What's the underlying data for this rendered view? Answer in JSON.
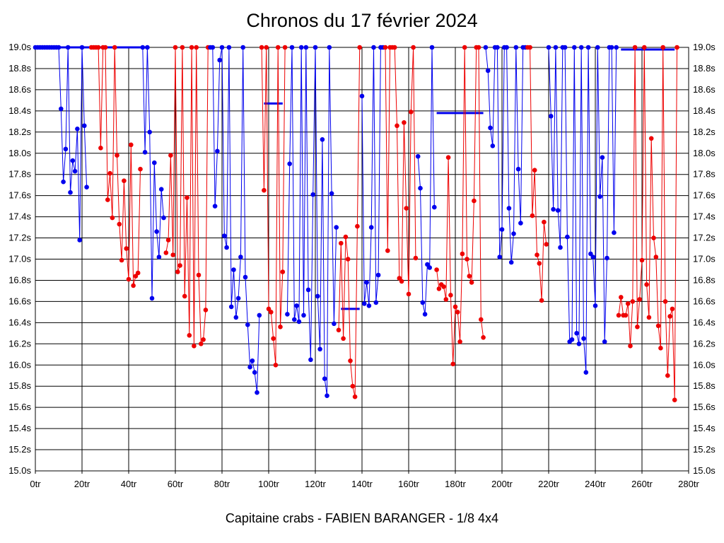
{
  "chart_data": {
    "type": "line",
    "title": "Chronos du 17 février 2024",
    "caption": "Capitaine crabs - FABIEN BARANGER - 1/8 4x4",
    "xlim": [
      0,
      280
    ],
    "ylim": [
      15.0,
      19.0
    ],
    "x_ticks": [
      0,
      20,
      40,
      60,
      80,
      100,
      120,
      140,
      160,
      180,
      200,
      220,
      240,
      260,
      280
    ],
    "x_tick_labels": [
      "0tr",
      "20tr",
      "40tr",
      "60tr",
      "80tr",
      "100tr",
      "120tr",
      "140tr",
      "160tr",
      "180tr",
      "200tr",
      "220tr",
      "240tr",
      "260tr",
      "280tr"
    ],
    "y_ticks": [
      15.0,
      15.2,
      15.4,
      15.6,
      15.8,
      16.0,
      16.2,
      16.4,
      16.6,
      16.8,
      17.0,
      17.2,
      17.4,
      17.6,
      17.8,
      18.0,
      18.2,
      18.4,
      18.6,
      18.8,
      19.0
    ],
    "y_tick_labels": [
      "15.0s",
      "15.2s",
      "15.4s",
      "15.6s",
      "15.8s",
      "16.0s",
      "16.2s",
      "16.4s",
      "16.6s",
      "16.8s",
      "17.0s",
      "17.2s",
      "17.4s",
      "17.6s",
      "17.8s",
      "18.0s",
      "18.2s",
      "18.4s",
      "18.6s",
      "18.8s",
      "19.0s"
    ],
    "grid": true,
    "colors": {
      "blue": "#0000ee",
      "red": "#ee0000",
      "grid": "#000000"
    },
    "segments": [
      {
        "color": "blue",
        "x": [
          0,
          1,
          2,
          3,
          4,
          5,
          6,
          7,
          8,
          9,
          10,
          11,
          12,
          13,
          14,
          15,
          16,
          17,
          18,
          19,
          20,
          21,
          22
        ],
        "y": [
          19.0,
          19.0,
          19.0,
          19.0,
          19.0,
          19.0,
          19.0,
          19.0,
          19.0,
          19.0,
          19.0,
          18.42,
          17.73,
          18.04,
          19.0,
          17.63,
          17.93,
          17.83,
          18.23,
          17.18,
          19.0,
          18.26,
          17.68
        ]
      },
      {
        "color": "red",
        "x": [
          24,
          25,
          26,
          27,
          28,
          29,
          30,
          31,
          32,
          33,
          34,
          35,
          36,
          37,
          38,
          39,
          40,
          41,
          42,
          43,
          44,
          45
        ],
        "y": [
          19.0,
          19.0,
          19.0,
          19.0,
          18.05,
          19.0,
          19.0,
          17.56,
          17.81,
          17.39,
          19.0,
          17.98,
          17.33,
          16.99,
          17.74,
          17.1,
          16.81,
          18.08,
          16.75,
          16.84,
          16.87,
          17.85
        ]
      },
      {
        "color": "blue",
        "x": [
          46,
          47,
          48,
          49,
          50,
          51,
          52,
          53,
          54,
          55
        ],
        "y": [
          19.0,
          18.01,
          19.0,
          18.2,
          16.63,
          17.91,
          17.26,
          17.02,
          17.66,
          17.39
        ]
      },
      {
        "color": "red",
        "x": [
          56,
          57,
          58,
          59,
          60,
          61,
          62,
          63,
          64,
          65,
          66,
          67,
          68,
          69,
          70,
          71,
          72,
          73,
          74
        ],
        "y": [
          17.06,
          17.18,
          17.98,
          17.04,
          19.0,
          16.88,
          16.94,
          19.0,
          16.65,
          17.58,
          16.28,
          19.0,
          16.18,
          19.0,
          16.85,
          16.2,
          16.24,
          16.52,
          19.0
        ]
      },
      {
        "color": "blue",
        "x": [
          75,
          76,
          77,
          78,
          79,
          80,
          81,
          82,
          83,
          84,
          85,
          86,
          87,
          88,
          89,
          90,
          91,
          92,
          93,
          94,
          95,
          96
        ],
        "y": [
          19.0,
          19.0,
          17.5,
          18.02,
          18.88,
          19.0,
          17.22,
          17.11,
          19.0,
          16.55,
          16.9,
          16.45,
          16.63,
          17.02,
          19.0,
          16.83,
          16.38,
          15.98,
          16.04,
          15.93,
          15.74,
          16.47
        ]
      },
      {
        "color": "red",
        "x": [
          97,
          98,
          99,
          100,
          101,
          102,
          103,
          104,
          105,
          106,
          107
        ],
        "y": [
          19.0,
          17.65,
          19.0,
          16.53,
          16.5,
          16.25,
          16.0,
          19.0,
          16.36,
          16.88,
          19.0
        ]
      },
      {
        "color": "blue",
        "x": [
          108,
          109,
          110,
          111,
          112,
          113,
          114,
          115,
          116,
          117,
          118,
          119,
          120,
          121,
          122,
          123,
          124,
          125,
          126,
          127,
          128,
          129
        ],
        "y": [
          16.48,
          17.9,
          19.0,
          16.43,
          16.56,
          16.41,
          19.0,
          16.47,
          19.0,
          16.71,
          16.05,
          17.61,
          19.0,
          16.65,
          16.15,
          18.13,
          15.87,
          15.71,
          19.0,
          17.62,
          16.39,
          17.3
        ]
      },
      {
        "color": "red",
        "x": [
          130,
          131,
          132,
          133,
          134,
          135,
          136,
          137,
          138,
          139
        ],
        "y": [
          16.33,
          17.15,
          16.25,
          17.21,
          17.0,
          16.04,
          15.8,
          15.7,
          17.31,
          19.0
        ]
      },
      {
        "color": "blue",
        "x": [
          140,
          141,
          142,
          143,
          144,
          145,
          146,
          147,
          148,
          149
        ],
        "y": [
          18.54,
          16.58,
          16.78,
          16.56,
          17.3,
          19.0,
          16.59,
          16.85,
          19.0,
          19.0
        ]
      },
      {
        "color": "red",
        "x": [
          150,
          151,
          152,
          153,
          154,
          155,
          156,
          157,
          158,
          159,
          160,
          161,
          162,
          163
        ],
        "y": [
          19.0,
          17.08,
          19.0,
          19.0,
          19.0,
          18.26,
          16.82,
          16.79,
          18.29,
          17.48,
          16.67,
          18.39,
          19.0,
          17.01
        ]
      },
      {
        "color": "blue",
        "x": [
          164,
          165,
          166,
          167,
          168,
          169,
          170,
          171
        ],
        "y": [
          17.97,
          17.67,
          16.59,
          16.48,
          16.95,
          16.92,
          19.0,
          17.49
        ]
      },
      {
        "color": "red",
        "x": [
          172,
          173,
          174,
          175,
          176,
          177,
          178,
          179,
          180,
          181,
          182,
          183,
          184,
          185,
          186,
          187,
          188,
          189,
          190,
          191,
          192
        ],
        "y": [
          16.9,
          16.72,
          16.76,
          16.74,
          16.62,
          17.96,
          16.66,
          16.01,
          16.55,
          16.5,
          16.22,
          17.05,
          19.0,
          17.0,
          16.84,
          16.78,
          17.55,
          19.0,
          19.0,
          16.43,
          16.26
        ]
      },
      {
        "color": "blue",
        "x": [
          193,
          194,
          195,
          196,
          197,
          198,
          199,
          200,
          201,
          202,
          203,
          204,
          205,
          206,
          207,
          208,
          209,
          210
        ],
        "y": [
          19.0,
          18.78,
          18.24,
          18.07,
          19.0,
          19.0,
          17.02,
          17.28,
          19.0,
          19.0,
          17.48,
          16.97,
          17.24,
          19.0,
          17.85,
          17.34,
          19.0,
          19.0
        ]
      },
      {
        "color": "red",
        "x": [
          211,
          212,
          213,
          214,
          215,
          216,
          217,
          218,
          219
        ],
        "y": [
          19.0,
          19.0,
          17.41,
          17.84,
          17.04,
          16.96,
          16.61,
          17.35,
          17.14
        ]
      },
      {
        "color": "blue",
        "x": [
          220,
          221,
          222,
          223,
          224,
          225,
          226,
          227,
          228,
          229,
          230,
          231,
          232,
          233,
          234,
          235,
          236,
          237,
          238,
          239,
          240,
          241,
          242,
          243,
          244,
          245,
          246,
          247,
          248,
          249
        ],
        "y": [
          19.0,
          18.35,
          17.47,
          19.0,
          17.46,
          17.11,
          19.0,
          19.0,
          17.21,
          16.22,
          16.24,
          19.0,
          16.3,
          16.2,
          19.0,
          16.25,
          15.93,
          19.0,
          17.05,
          17.02,
          16.56,
          19.0,
          17.59,
          17.96,
          16.22,
          17.01,
          19.0,
          19.0,
          17.25,
          19.0
        ]
      },
      {
        "color": "red",
        "x": [
          250,
          251,
          252,
          253,
          254,
          255,
          256,
          257,
          258,
          259,
          260,
          261,
          262,
          263,
          264,
          265,
          266,
          267,
          268,
          269,
          270,
          271,
          272,
          273,
          274,
          275
        ],
        "y": [
          16.47,
          16.64,
          16.47,
          16.47,
          16.58,
          16.18,
          16.6,
          19.0,
          16.36,
          16.62,
          16.99,
          19.0,
          16.76,
          16.45,
          18.14,
          17.2,
          17.02,
          16.37,
          16.16,
          19.0,
          16.6,
          15.9,
          16.46,
          16.53,
          15.67,
          19.0
        ]
      }
    ],
    "pit_lines": [
      {
        "color": "blue",
        "x": [
          3,
          48
        ],
        "y": [
          19.0,
          19.0
        ]
      },
      {
        "color": "blue",
        "x": [
          98,
          106
        ],
        "y": [
          18.47,
          18.47
        ]
      },
      {
        "color": "blue",
        "x": [
          131,
          139
        ],
        "y": [
          16.53,
          16.53
        ]
      },
      {
        "color": "blue",
        "x": [
          172,
          192
        ],
        "y": [
          18.38,
          18.38
        ]
      },
      {
        "color": "blue",
        "x": [
          251,
          274
        ],
        "y": [
          18.98,
          18.98
        ]
      }
    ]
  }
}
